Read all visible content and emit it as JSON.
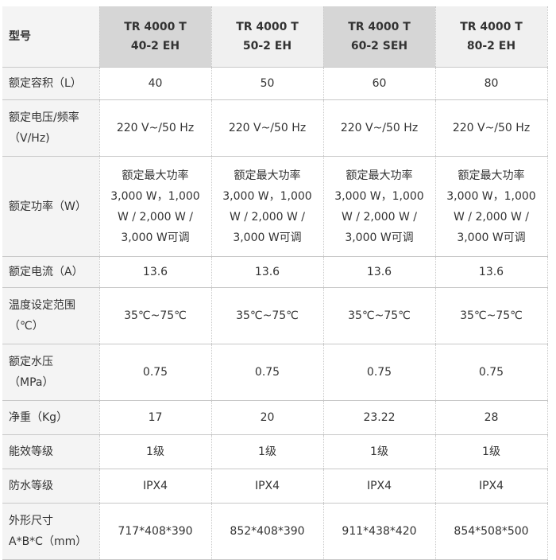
{
  "table": {
    "header": {
      "label": "型号",
      "models": [
        [
          "TR 4000 T",
          "40-2 EH"
        ],
        [
          "TR 4000 T",
          "50-2 EH"
        ],
        [
          "TR 4000 T",
          "60-2 SEH"
        ],
        [
          "TR 4000 T",
          "80-2 EH"
        ]
      ]
    },
    "rows": [
      {
        "label": [
          "额定容积（L）"
        ],
        "cells": [
          [
            "40"
          ],
          [
            "50"
          ],
          [
            "60"
          ],
          [
            "80"
          ]
        ]
      },
      {
        "label": [
          "额定电压/频率",
          "（V/Hz)"
        ],
        "cells": [
          [
            "220 V~/50 Hz"
          ],
          [
            "220 V~/50 Hz"
          ],
          [
            "220 V~/50 Hz"
          ],
          [
            "220 V~/50 Hz"
          ]
        ]
      },
      {
        "label": [
          "额定功率（W）"
        ],
        "cells": [
          [
            "额定最大功率",
            "3,000 W，1,000",
            "W / 2,000 W /",
            "3,000 W可调"
          ],
          [
            "额定最大功率",
            "3,000 W，1,000",
            "W / 2,000 W /",
            "3,000 W可调"
          ],
          [
            "额定最大功率",
            "3,000 W，1,000",
            "W / 2,000 W /",
            "3,000 W可调"
          ],
          [
            "额定最大功率",
            "3,000 W，1,000",
            "W / 2,000 W /",
            "3,000 W可调"
          ]
        ]
      },
      {
        "label": [
          "额定电流（A）"
        ],
        "cells": [
          [
            "13.6"
          ],
          [
            "13.6"
          ],
          [
            "13.6"
          ],
          [
            "13.6"
          ]
        ]
      },
      {
        "label": [
          "温度设定范围",
          "（℃）"
        ],
        "cells": [
          [
            "35℃~75℃"
          ],
          [
            "35℃~75℃"
          ],
          [
            "35℃~75℃"
          ],
          [
            "35℃~75℃"
          ]
        ]
      },
      {
        "label": [
          "额定水压",
          "（MPa）"
        ],
        "cells": [
          [
            "0.75"
          ],
          [
            "0.75"
          ],
          [
            "0.75"
          ],
          [
            "0.75"
          ]
        ]
      },
      {
        "label": [
          "净重（Kg）"
        ],
        "cells": [
          [
            "17"
          ],
          [
            "20"
          ],
          [
            "23.22"
          ],
          [
            "28"
          ]
        ]
      },
      {
        "label": [
          "能效等级"
        ],
        "cells": [
          [
            "1级"
          ],
          [
            "1级"
          ],
          [
            "1级"
          ],
          [
            "1级"
          ]
        ]
      },
      {
        "label": [
          "防水等级"
        ],
        "cells": [
          [
            "IPX4"
          ],
          [
            "IPX4"
          ],
          [
            "IPX4"
          ],
          [
            "IPX4"
          ]
        ]
      },
      {
        "label": [
          "外形尺寸",
          "A*B*C（mm）"
        ],
        "cells": [
          [
            "717*408*390"
          ],
          [
            "852*408*390"
          ],
          [
            "911*438*420"
          ],
          [
            "854*508*500"
          ]
        ]
      }
    ]
  }
}
